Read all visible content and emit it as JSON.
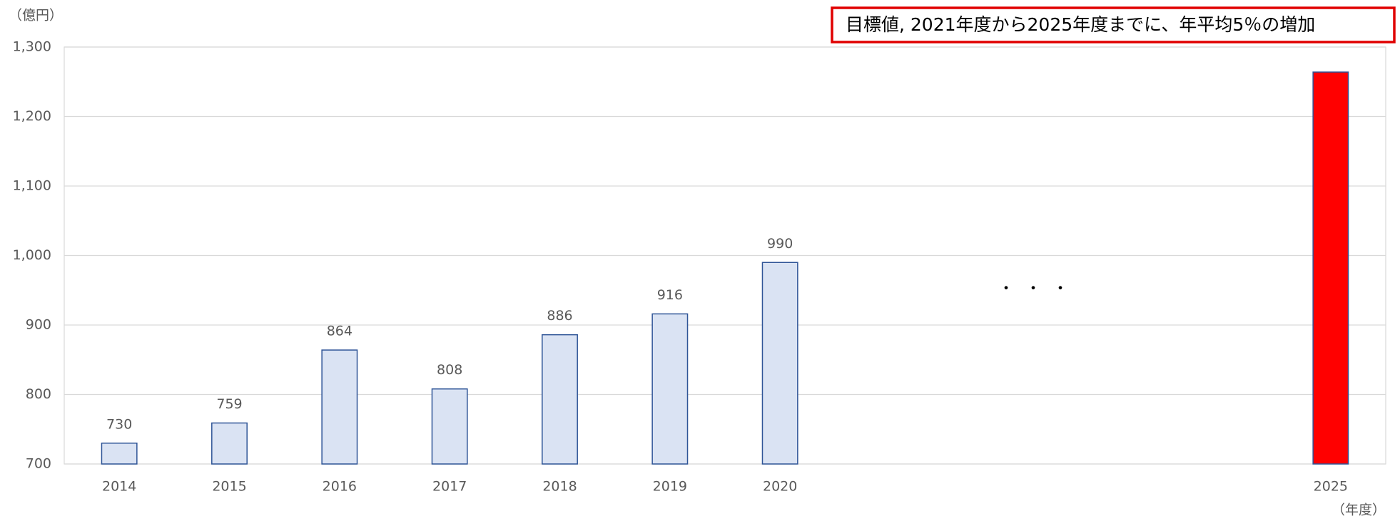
{
  "chart_data": {
    "type": "bar",
    "unit_label": "（億円）",
    "x_unit_label": "（年度）",
    "annotation": "目標値, 2021年度から2025年度までに、年平均5％の増加",
    "gap_label": "・・・",
    "categories": [
      "2014",
      "2015",
      "2016",
      "2017",
      "2018",
      "2019",
      "2020",
      null,
      null,
      null,
      null,
      "2025"
    ],
    "values": [
      730,
      759,
      864,
      808,
      886,
      916,
      990,
      null,
      null,
      null,
      null,
      1264
    ],
    "value_labels": [
      "730",
      "759",
      "864",
      "808",
      "886",
      "916",
      "990",
      null,
      null,
      null,
      null,
      null
    ],
    "colors": [
      "#dae3f3",
      "#dae3f3",
      "#dae3f3",
      "#dae3f3",
      "#dae3f3",
      "#dae3f3",
      "#dae3f3",
      null,
      null,
      null,
      null,
      "#ff0000"
    ],
    "edge_color": "#2f5597",
    "ylim": [
      700,
      1300
    ],
    "yticks": [
      700,
      800,
      900,
      {
        "value": 1000,
        "label": "1,000"
      },
      {
        "value": 1100,
        "label": "1,100"
      },
      {
        "value": 1200,
        "label": "1,200"
      },
      {
        "value": 1300,
        "label": "1,300"
      }
    ],
    "grid": true
  }
}
